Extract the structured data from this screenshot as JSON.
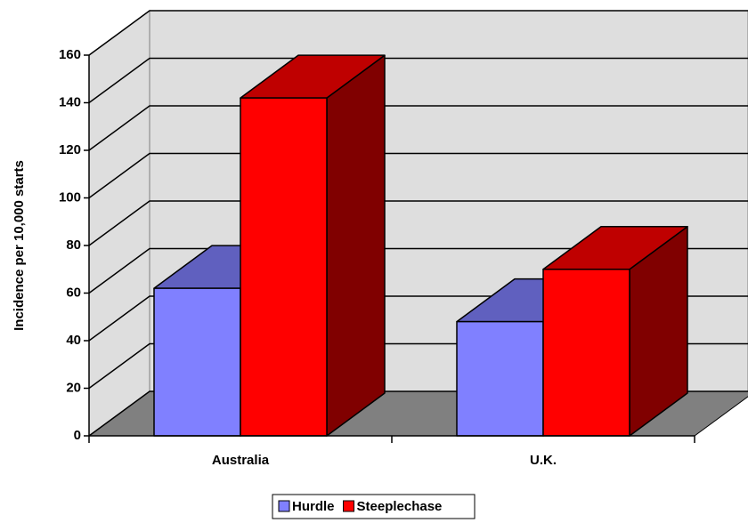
{
  "chart_data": {
    "type": "bar3d",
    "y_label": "Incidence per 10,000 starts",
    "categories": [
      "Australia",
      "U.K."
    ],
    "series": [
      {
        "name": "Hurdle",
        "color": "#8080ff",
        "values": [
          62,
          48
        ]
      },
      {
        "name": "Steeplechase",
        "color": "#ff0000",
        "values": [
          142,
          70
        ]
      }
    ],
    "ylim": [
      0,
      160
    ],
    "yticks": [
      0,
      20,
      40,
      60,
      80,
      100,
      120,
      140,
      160
    ],
    "grid": true,
    "legend": "bottom"
  }
}
